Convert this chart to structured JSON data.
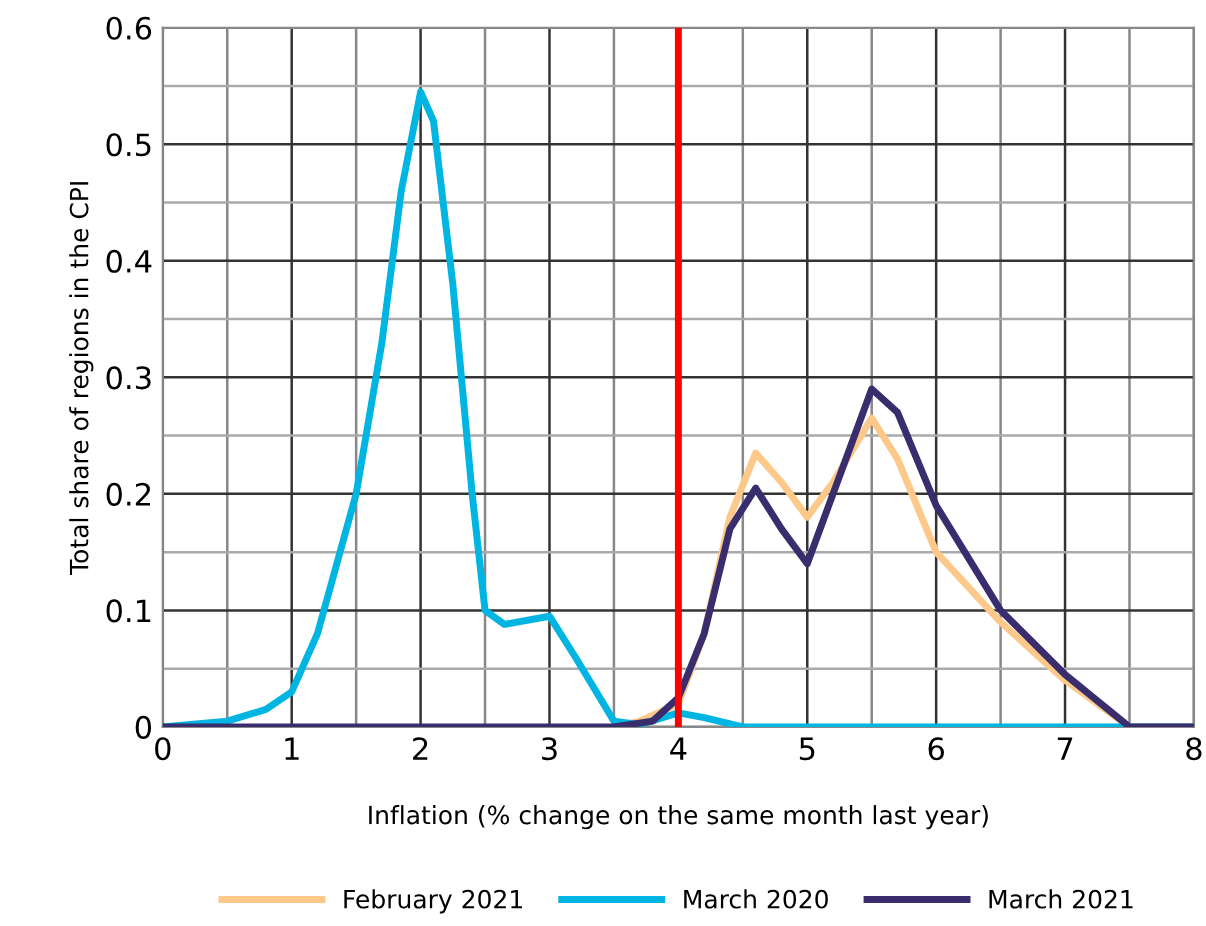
{
  "chart_data": {
    "type": "line",
    "xlabel": "Inflation (% change on the same month last year)",
    "ylabel": "Total share of regions in the CPI",
    "xlim": [
      0,
      8
    ],
    "ylim": [
      0,
      0.6
    ],
    "xticks": [
      0,
      1,
      2,
      3,
      4,
      5,
      6,
      7,
      8
    ],
    "yticks": [
      0,
      0.1,
      0.2,
      0.3,
      0.4,
      0.5,
      0.6
    ],
    "grid": true,
    "legend": "bottom",
    "marker": "none",
    "line_style": "solid",
    "ref_lines": [
      {
        "axis": "x",
        "value": 4,
        "color": "#ff0000"
      }
    ],
    "series": [
      {
        "name": "February 2021",
        "color": "#fdc98a",
        "x": [
          3.5,
          3.7,
          4.0,
          4.2,
          4.4,
          4.6,
          4.8,
          5.0,
          5.2,
          5.5,
          5.7,
          6.0,
          6.5,
          7.0,
          7.5,
          8
        ],
        "values": [
          0,
          0.005,
          0.02,
          0.08,
          0.18,
          0.235,
          0.21,
          0.18,
          0.21,
          0.265,
          0.23,
          0.15,
          0.09,
          0.04,
          0,
          0
        ]
      },
      {
        "name": "March 2020",
        "color": "#00b5e2",
        "x": [
          0,
          0.5,
          0.8,
          1.0,
          1.2,
          1.5,
          1.7,
          1.85,
          2.0,
          2.1,
          2.25,
          2.4,
          2.5,
          2.65,
          3.0,
          3.2,
          3.5,
          3.7,
          4.0,
          4.2,
          4.5,
          8
        ],
        "values": [
          0,
          0.005,
          0.015,
          0.03,
          0.08,
          0.2,
          0.33,
          0.46,
          0.545,
          0.52,
          0.38,
          0.2,
          0.1,
          0.088,
          0.095,
          0.06,
          0.005,
          0.002,
          0.012,
          0.008,
          0,
          0
        ]
      },
      {
        "name": "March 2021",
        "color": "#3a2d6e",
        "x": [
          0,
          1,
          2,
          3,
          3.5,
          3.8,
          4.0,
          4.2,
          4.4,
          4.6,
          4.8,
          5.0,
          5.2,
          5.5,
          5.7,
          6.0,
          6.5,
          7.0,
          7.5,
          8
        ],
        "values": [
          0,
          0,
          0,
          0,
          0,
          0.005,
          0.025,
          0.08,
          0.17,
          0.205,
          0.17,
          0.14,
          0.2,
          0.29,
          0.27,
          0.19,
          0.1,
          0.045,
          0,
          0
        ]
      }
    ]
  }
}
